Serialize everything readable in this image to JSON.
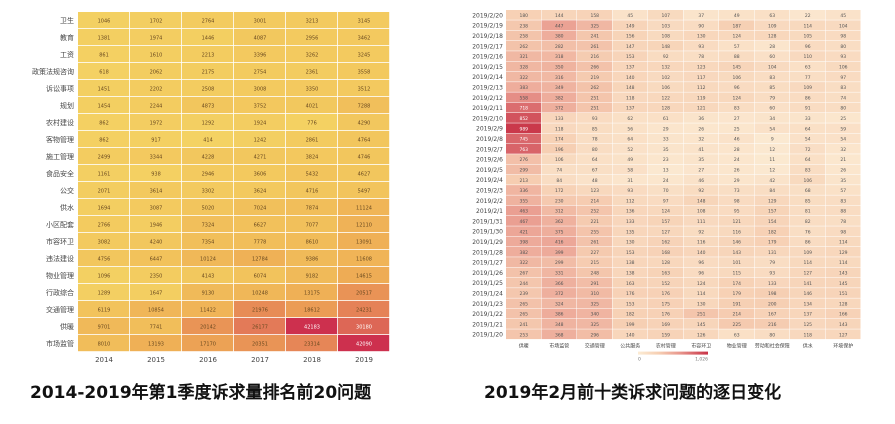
{
  "chart_data": [
    {
      "type": "heatmap",
      "title": "2014-2019年第1季度诉求量排名前20问题",
      "x": [
        "2014",
        "2015",
        "2016",
        "2017",
        "2018",
        "2019"
      ],
      "y": [
        "卫生",
        "教育",
        "工资",
        "政策法规咨询",
        "诉讼事项",
        "规划",
        "农村建设",
        "客物管理",
        "施工管理",
        "食品安全",
        "公交",
        "供水",
        "小区配套",
        "市容环卫",
        "违法建设",
        "物业管理",
        "行政综合",
        "交通管理",
        "供暖",
        "市场监管"
      ],
      "values": [
        [
          1046,
          1702,
          2764,
          3001,
          3213,
          3145
        ],
        [
          1381,
          1974,
          1446,
          4087,
          2956,
          3462
        ],
        [
          861,
          1610,
          2213,
          3396,
          3262,
          3245
        ],
        [
          618,
          2062,
          2175,
          2754,
          2361,
          3558
        ],
        [
          1451,
          2202,
          2508,
          3008,
          3350,
          3512
        ],
        [
          1454,
          2244,
          4873,
          3752,
          4021,
          7288
        ],
        [
          862,
          1972,
          1292,
          1924,
          776,
          4290
        ],
        [
          862,
          917,
          414,
          1242,
          2861,
          4764
        ],
        [
          2499,
          3344,
          4228,
          4271,
          3824,
          4746
        ],
        [
          1161,
          938,
          2946,
          3606,
          5432,
          4627
        ],
        [
          2071,
          3614,
          3302,
          3624,
          4716,
          5497
        ],
        [
          1694,
          3087,
          5020,
          7024,
          7874,
          11124
        ],
        [
          2766,
          1946,
          7324,
          6627,
          7077,
          12110
        ],
        [
          3082,
          4240,
          7354,
          7778,
          8610,
          13091
        ],
        [
          4756,
          6447,
          10124,
          12784,
          9386,
          11608
        ],
        [
          1096,
          2350,
          4143,
          6074,
          9182,
          14615
        ],
        [
          1289,
          1647,
          9130,
          10248,
          13175,
          20517
        ],
        [
          6119,
          10854,
          11422,
          21976,
          18612,
          24231
        ],
        [
          9701,
          7741,
          20142,
          26177,
          42183,
          30180
        ],
        [
          8010,
          13193,
          17170,
          20351,
          23314,
          42090
        ]
      ]
    },
    {
      "type": "heatmap",
      "title": "2019年2月前十类诉求问题的逐日变化",
      "x": [
        "供暖",
        "市场监管",
        "交通管理",
        "公共服务",
        "农村管理",
        "市容环卫",
        "物业管理",
        "劳动和社会保障",
        "供水",
        "环境保护"
      ],
      "y": [
        "2019/2/20",
        "2019/2/19",
        "2019/2/18",
        "2019/2/17",
        "2019/2/16",
        "2019/2/15",
        "2019/2/14",
        "2019/2/13",
        "2019/2/12",
        "2019/2/11",
        "2019/2/10",
        "2019/2/9",
        "2019/2/8",
        "2019/2/7",
        "2019/2/6",
        "2019/2/5",
        "2019/2/4",
        "2019/2/3",
        "2019/2/2",
        "2019/2/1",
        "2019/1/31",
        "2019/1/30",
        "2019/1/29",
        "2019/1/28",
        "2019/1/27",
        "2019/1/26",
        "2019/1/25",
        "2019/1/24",
        "2019/1/23",
        "2019/1/22",
        "2019/1/21",
        "2019/1/20"
      ],
      "values": [
        [
          180,
          144,
          158,
          45,
          107,
          37,
          49,
          63,
          22,
          45
        ],
        [
          238,
          447,
          325,
          149,
          103,
          90,
          187,
          109,
          114,
          104
        ],
        [
          258,
          380,
          241,
          156,
          108,
          130,
          124,
          128,
          105,
          98
        ],
        [
          262,
          282,
          261,
          147,
          148,
          93,
          57,
          28,
          96,
          80
        ],
        [
          321,
          318,
          216,
          153,
          92,
          78,
          88,
          60,
          110,
          93
        ],
        [
          328,
          350,
          266,
          137,
          132,
          123,
          145,
          104,
          63,
          106
        ],
        [
          322,
          316,
          219,
          140,
          102,
          117,
          106,
          83,
          77,
          97
        ],
        [
          383,
          349,
          262,
          148,
          106,
          112,
          96,
          85,
          109,
          83
        ],
        [
          558,
          382,
          251,
          118,
          122,
          119,
          124,
          79,
          86,
          74
        ],
        [
          718,
          372,
          251,
          137,
          128,
          121,
          83,
          60,
          91,
          80
        ],
        [
          852,
          133,
          93,
          62,
          61,
          36,
          27,
          34,
          33,
          25
        ],
        [
          989,
          118,
          85,
          56,
          29,
          26,
          25,
          54,
          64,
          59
        ],
        [
          745,
          174,
          78,
          64,
          33,
          32,
          46,
          9,
          54,
          54
        ],
        [
          763,
          196,
          80,
          52,
          35,
          41,
          28,
          12,
          72,
          32
        ],
        [
          276,
          106,
          64,
          49,
          23,
          35,
          24,
          11,
          64,
          21
        ],
        [
          299,
          74,
          67,
          58,
          13,
          27,
          26,
          12,
          83,
          26
        ],
        [
          213,
          84,
          48,
          31,
          24,
          46,
          29,
          42,
          106,
          35
        ],
        [
          336,
          172,
          123,
          93,
          70,
          92,
          73,
          84,
          68,
          57
        ],
        [
          355,
          230,
          214,
          112,
          97,
          148,
          98,
          129,
          85,
          83
        ],
        [
          463,
          312,
          252,
          136,
          124,
          108,
          95,
          157,
          81,
          88
        ],
        [
          467,
          362,
          221,
          133,
          157,
          111,
          121,
          154,
          82,
          78
        ],
        [
          421,
          375,
          255,
          135,
          127,
          92,
          116,
          182,
          76,
          98
        ],
        [
          398,
          416,
          261,
          130,
          162,
          116,
          146,
          179,
          86,
          114
        ],
        [
          382,
          399,
          227,
          153,
          168,
          140,
          143,
          131,
          109,
          129
        ],
        [
          322,
          299,
          215,
          138,
          128,
          96,
          101,
          79,
          114,
          114
        ],
        [
          267,
          331,
          248,
          138,
          163,
          96,
          115,
          93,
          127,
          143
        ],
        [
          244,
          366,
          291,
          163,
          152,
          124,
          174,
          133,
          141,
          145
        ],
        [
          239,
          372,
          310,
          176,
          176,
          114,
          179,
          198,
          146,
          151
        ],
        [
          265,
          324,
          325,
          153,
          175,
          130,
          191,
          200,
          134,
          128
        ],
        [
          265,
          386,
          340,
          182,
          176,
          251,
          214,
          167,
          137,
          166
        ],
        [
          241,
          348,
          325,
          199,
          169,
          145,
          225,
          216,
          125,
          143
        ],
        [
          253,
          368,
          296,
          140,
          159,
          126,
          63,
          80,
          118,
          127
        ]
      ],
      "legend": {
        "min_label": "0",
        "max_label": "1,026"
      }
    }
  ],
  "captions": {
    "left": "2014-2019年第1季度诉求量排名前20问题",
    "right": "2019年2月前十类诉求问题的逐日变化"
  }
}
